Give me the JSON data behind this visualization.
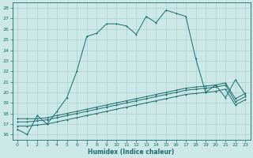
{
  "xlabel": "Humidex (Indice chaleur)",
  "bg_color": "#cce8e8",
  "grid_color": "#aad0d0",
  "line_color": "#1a6b6b",
  "xlim": [
    -0.5,
    23.5
  ],
  "ylim": [
    15.5,
    28.5
  ],
  "xticks": [
    0,
    1,
    2,
    3,
    4,
    5,
    6,
    7,
    8,
    9,
    10,
    11,
    12,
    13,
    14,
    15,
    16,
    17,
    18,
    19,
    20,
    21,
    22,
    23
  ],
  "yticks": [
    16,
    17,
    18,
    19,
    20,
    21,
    22,
    23,
    24,
    25,
    26,
    27,
    28
  ],
  "series1_y": [
    16.5,
    16.0,
    17.8,
    17.0,
    18.2,
    19.5,
    22.0,
    25.3,
    25.6,
    26.5,
    26.5,
    26.3,
    25.5,
    27.2,
    26.6,
    27.8,
    27.5,
    27.2,
    23.2,
    20.0,
    20.7,
    19.5,
    21.2,
    19.8
  ],
  "series2_y": [
    17.5,
    17.5,
    17.5,
    17.6,
    17.8,
    18.0,
    18.2,
    18.4,
    18.6,
    18.8,
    19.0,
    19.2,
    19.4,
    19.6,
    19.8,
    20.0,
    20.2,
    20.4,
    20.5,
    20.6,
    20.7,
    20.9,
    19.4,
    19.9
  ],
  "series3_y": [
    17.2,
    17.2,
    17.3,
    17.4,
    17.6,
    17.8,
    18.0,
    18.2,
    18.4,
    18.6,
    18.8,
    19.0,
    19.2,
    19.4,
    19.6,
    19.8,
    20.0,
    20.2,
    20.3,
    20.4,
    20.5,
    20.7,
    19.1,
    19.6
  ],
  "series4_y": [
    16.8,
    16.8,
    16.9,
    17.0,
    17.2,
    17.4,
    17.6,
    17.8,
    18.0,
    18.2,
    18.4,
    18.6,
    18.8,
    19.0,
    19.2,
    19.4,
    19.6,
    19.8,
    19.9,
    20.0,
    20.1,
    20.3,
    18.8,
    19.3
  ]
}
